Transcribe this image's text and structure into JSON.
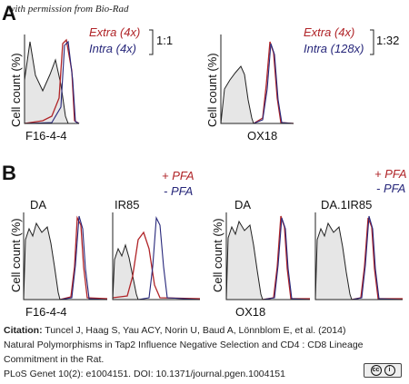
{
  "watermark": "with permission from Bio-Rad",
  "panel_a": {
    "letter": "A",
    "ylabel": "Cell count (%)",
    "left": {
      "xlabel": "F16-4-4",
      "legend_extra": "Extra (4x)",
      "legend_intra": "Intra (4x)",
      "ratio": "1:1"
    },
    "right": {
      "xlabel": "OX18",
      "legend_extra": "Extra (4x)",
      "legend_intra": "Intra (128x)",
      "ratio": "1:32"
    }
  },
  "panel_b": {
    "letter": "B",
    "ylabel": "Cell count (%)",
    "legend_pos": "+ PFA",
    "legend_neg": "- PFA",
    "left": {
      "strain1": "DA",
      "strain2": "IR85",
      "xlabel": "F16-4-4"
    },
    "right": {
      "strain1": "DA",
      "strain2": "DA.1IR85",
      "xlabel": "OX18"
    }
  },
  "citation": {
    "label": "Citation:",
    "line1": " Tuncel J, Haag S, Yau ACY, Norin U, Baud A, Lönnblom E, et al. (2014)",
    "line2": "Natural Polymorphisms in Tap2 Influence Negative Selection and CD4 : CD8 Lineage",
    "line3": "Commitment in the Rat.",
    "line4": "PLoS Genet 10(2): e1004151. DOI: 10.1371/journal.pgen.1004151"
  },
  "license_badge": {
    "icon": "cc-by-icon",
    "text": "BY"
  },
  "colors": {
    "extra": "#b02428",
    "intra": "#26267a",
    "control": "#222222",
    "fill": "#e6e6e6"
  }
}
